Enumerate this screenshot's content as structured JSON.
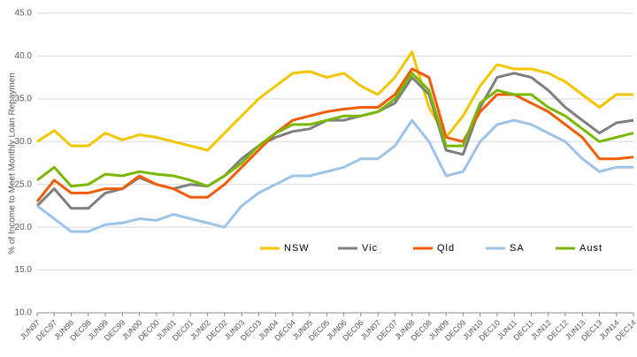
{
  "chart_data": {
    "type": "line",
    "y_label": "% of Income to Meet Monthly Loan Repaymen",
    "categories": [
      "JUN97",
      "DEC97",
      "JUN98",
      "DEC98",
      "JUN99",
      "DEC99",
      "JUN00",
      "DEC00",
      "JUN01",
      "DEC01",
      "JUN02",
      "DEC02",
      "JUN03",
      "DEC03",
      "JUN04",
      "DEC04",
      "JUN05",
      "DEC05",
      "JUN06",
      "DEC06",
      "JUN07",
      "DEC07",
      "JUN08",
      "DEC08",
      "JUN09",
      "DEC09",
      "JUN10",
      "DEC10",
      "JUN11",
      "DEC11",
      "JUN12",
      "DEC12",
      "JUN13",
      "DEC13",
      "JUN14",
      "DEC14"
    ],
    "series": [
      {
        "name": "NSW",
        "color": "#f2c500",
        "values": [
          30,
          31.3,
          29.5,
          29.5,
          31,
          30.2,
          30.8,
          30.5,
          30,
          29.5,
          29,
          31,
          33,
          35,
          36.5,
          38,
          38.2,
          37.5,
          38,
          36.5,
          35.5,
          37.5,
          40.5,
          34,
          30.5,
          33,
          36.5,
          39,
          38.5,
          38.5,
          38,
          37,
          35.5,
          34,
          35.5,
          35.5
        ]
      },
      {
        "name": "Vic",
        "color": "#7f7f7f",
        "values": [
          22.5,
          24.5,
          22.2,
          22.2,
          24,
          24.5,
          25.8,
          25,
          24.5,
          25,
          24.8,
          26,
          28,
          29.5,
          30.5,
          31.2,
          31.5,
          32.5,
          32.5,
          33,
          33.5,
          34.5,
          37.5,
          35.5,
          29,
          28.5,
          34,
          37.5,
          38,
          37.5,
          36,
          34,
          32.5,
          31,
          32.2,
          32.5
        ]
      },
      {
        "name": "Qld",
        "color": "#f25c05",
        "values": [
          23,
          25.5,
          24,
          24,
          24.5,
          24.5,
          26,
          25,
          24.5,
          23.5,
          23.5,
          25,
          27,
          29,
          31,
          32.5,
          33,
          33.5,
          33.8,
          34,
          34,
          35.5,
          38.5,
          37.5,
          30.5,
          30,
          33.5,
          35.5,
          35.5,
          34.5,
          33.5,
          32,
          30.5,
          28,
          28,
          28.2
        ]
      },
      {
        "name": "SA",
        "color": "#9dc3e6",
        "values": [
          22.5,
          21,
          19.5,
          19.5,
          20.3,
          20.5,
          21,
          20.8,
          21.5,
          21,
          20.5,
          20,
          22.5,
          24,
          25,
          26,
          26,
          26.5,
          27,
          28,
          28,
          29.5,
          32.5,
          30,
          26,
          26.5,
          30,
          32,
          32.5,
          32,
          31,
          30,
          28,
          26.5,
          27,
          27
        ]
      },
      {
        "name": "Aust",
        "color": "#7ab800",
        "values": [
          25.5,
          27,
          24.8,
          25,
          26.2,
          26,
          26.5,
          26.2,
          26,
          25.5,
          24.8,
          26,
          27.5,
          29.5,
          31,
          32,
          32,
          32.5,
          33,
          33,
          33.5,
          35,
          38,
          36,
          29.5,
          29.5,
          34.5,
          36,
          35.5,
          35.5,
          34,
          33,
          31.5,
          30,
          30.5,
          31
        ]
      }
    ],
    "ylim": [
      10,
      45
    ],
    "yticks": [
      {
        "value": 10,
        "label": "10.0"
      },
      {
        "value": 15,
        "label": "15.0"
      },
      {
        "value": 20,
        "label": "20.0"
      },
      {
        "value": 25,
        "label": "25.0"
      },
      {
        "value": 30,
        "label": "30.0"
      },
      {
        "value": 35,
        "label": "35.0"
      },
      {
        "value": 40,
        "label": "40.0"
      },
      {
        "value": 45,
        "label": "45.0"
      }
    ],
    "grid": true
  }
}
